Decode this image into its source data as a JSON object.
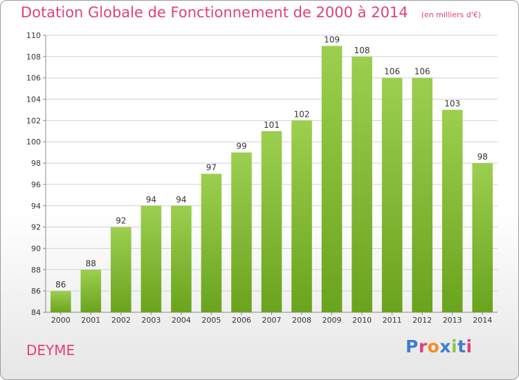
{
  "header": {
    "title": "Dotation Globale de Fonctionnement de 2000 à 2014",
    "unit": "(en milliers d'€)"
  },
  "commune": "DEYME",
  "logo": {
    "text": "Proxiti",
    "letter_colors": [
      "#3d7fcf",
      "#e0407a",
      "#f28c28",
      "#3d7fcf",
      "#8cc63f",
      "#3d7fcf",
      "#e0407a"
    ]
  },
  "chart_data": {
    "type": "bar",
    "title": "Dotation Globale de Fonctionnement de 2000 à 2014",
    "unit": "(en milliers d'€)",
    "xlabel": "",
    "ylabel": "",
    "categories": [
      "2000",
      "2001",
      "2002",
      "2003",
      "2004",
      "2005",
      "2006",
      "2007",
      "2008",
      "2009",
      "2010",
      "2011",
      "2012",
      "2013",
      "2014"
    ],
    "values": [
      86,
      88,
      92,
      94,
      94,
      97,
      99,
      101,
      102,
      109,
      108,
      106,
      106,
      103,
      98
    ],
    "ylim": [
      84,
      110
    ],
    "yticks": [
      84,
      86,
      88,
      90,
      92,
      94,
      96,
      98,
      100,
      102,
      104,
      106,
      108,
      110
    ],
    "grid": true,
    "bar_color_top": "#9ccf4f",
    "bar_color_bottom": "#6aa31e"
  }
}
